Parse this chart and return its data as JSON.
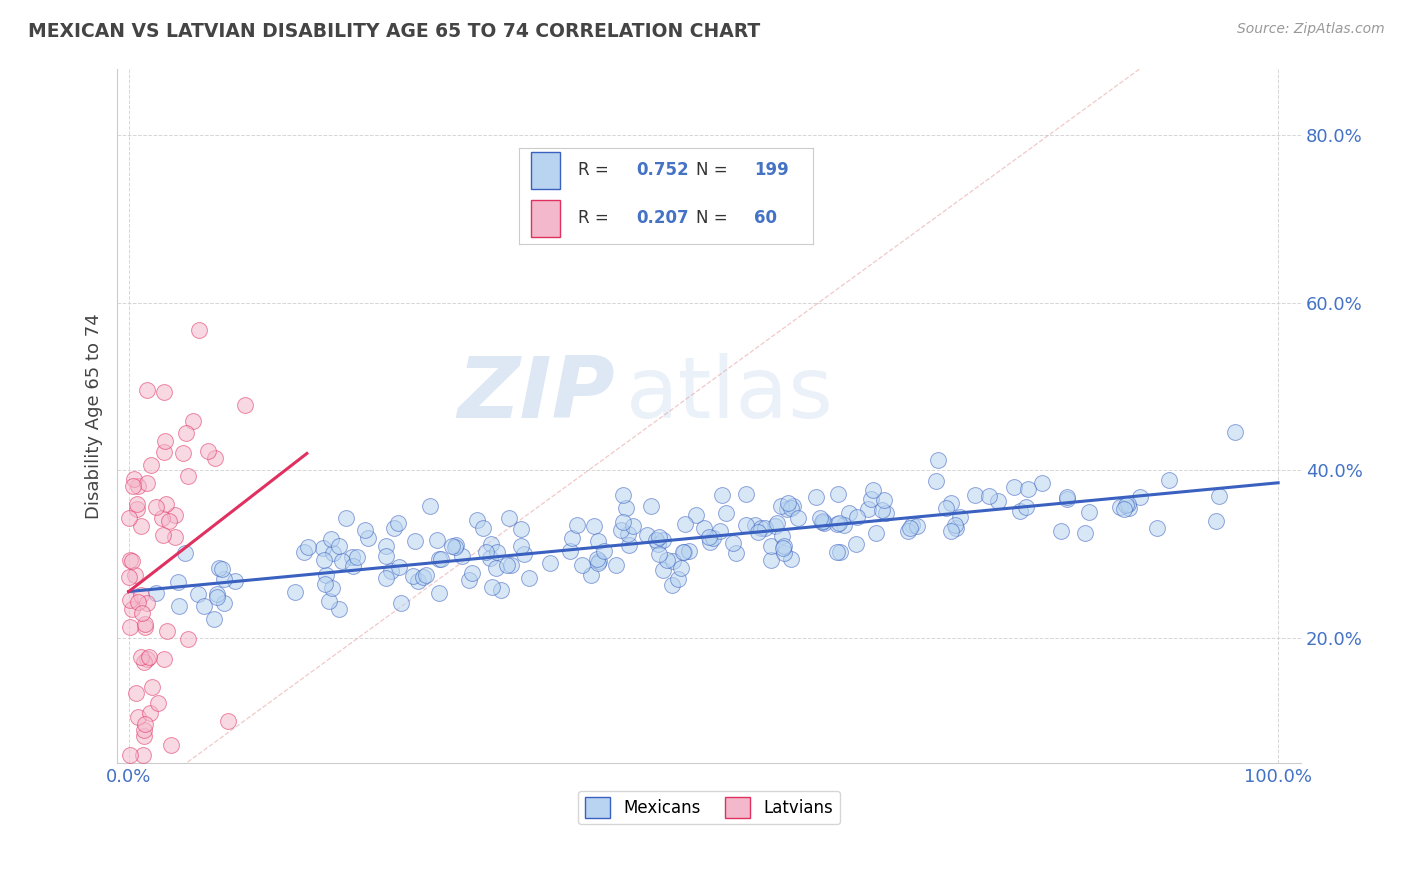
{
  "title": "MEXICAN VS LATVIAN DISABILITY AGE 65 TO 74 CORRELATION CHART",
  "source": "Source: ZipAtlas.com",
  "ylabel": "Disability Age 65 to 74",
  "r_mexican": 0.752,
  "n_mexican": 199,
  "r_latvian": 0.207,
  "n_latvian": 60,
  "color_mexican": "#b8d4f0",
  "color_latvian": "#f4b8cc",
  "line_color_mexican": "#3a60c0",
  "line_color_latvian": "#e03060",
  "watermark_zip": "ZIP",
  "watermark_atlas": "atlas",
  "legend_labels": [
    "Mexicans",
    "Latvians"
  ],
  "x_min": 0.0,
  "x_max": 1.0,
  "y_min": 0.05,
  "y_max": 0.88,
  "yticks": [
    0.2,
    0.4,
    0.6,
    0.8
  ],
  "ytick_labels": [
    "20.0%",
    "40.0%",
    "60.0%",
    "80.0%"
  ],
  "xtick_labels": [
    "0.0%",
    "100.0%"
  ],
  "mexican_seed": 42,
  "latvian_seed": 7,
  "mex_line_x0": 0.0,
  "mex_line_x1": 1.0,
  "mex_line_y0": 0.255,
  "mex_line_y1": 0.385,
  "lat_line_x0": 0.0,
  "lat_line_x1": 0.155,
  "lat_line_y0": 0.255,
  "lat_line_y1": 0.42
}
